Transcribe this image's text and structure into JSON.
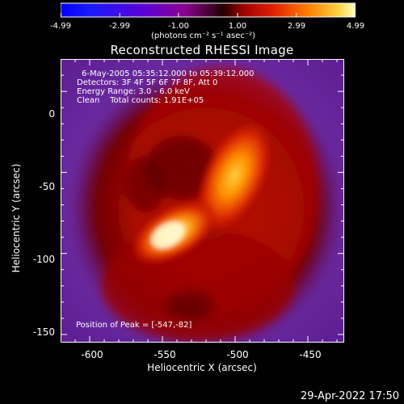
{
  "colorbar": {
    "ticks": [
      "-4.99",
      "-2.99",
      "-1.00",
      "1.00",
      "2.99",
      "4.99"
    ],
    "tick_values": [
      -4.99,
      -2.99,
      -1.0,
      1.0,
      2.99,
      4.99
    ],
    "range": [
      -4.99,
      4.99
    ],
    "units": "(photons cm⁻² s⁻¹ asec⁻²)"
  },
  "chart_data": {
    "type": "heatmap",
    "title": "Reconstructed RHESSI Image",
    "xlabel": "Heliocentric X (arcsec)",
    "ylabel": "Heliocentric Y (arcsec)",
    "xlim": [
      -620,
      -425
    ],
    "ylim": [
      -155,
      20
    ],
    "xticks": [
      "-600",
      "-550",
      "-500",
      "-450"
    ],
    "xtick_values": [
      -600,
      -550,
      -500,
      -450
    ],
    "yticks": [
      "0",
      "-50",
      "-100",
      "-150"
    ],
    "ytick_values": [
      0,
      -50,
      -100,
      -150
    ],
    "info_lines": [
      "6-May-2005 05:35:12.000 to 05:39:12.000",
      "Detectors: 3F 4F 5F 6F 7F 8F, Att 0",
      "Energy Range: 3.0 - 6.0 keV",
      "Clean    Total counts: 1.91E+05"
    ],
    "peak_label": "Position of Peak = [-547,-82]",
    "peak_position": [
      -547,
      -82
    ],
    "sources": [
      {
        "x": -547,
        "y": -82,
        "intensity": 4.99
      },
      {
        "x": -490,
        "y": -45,
        "intensity": 3.4
      }
    ]
  },
  "footer": {
    "date": "29-Apr-2022 17:50"
  }
}
